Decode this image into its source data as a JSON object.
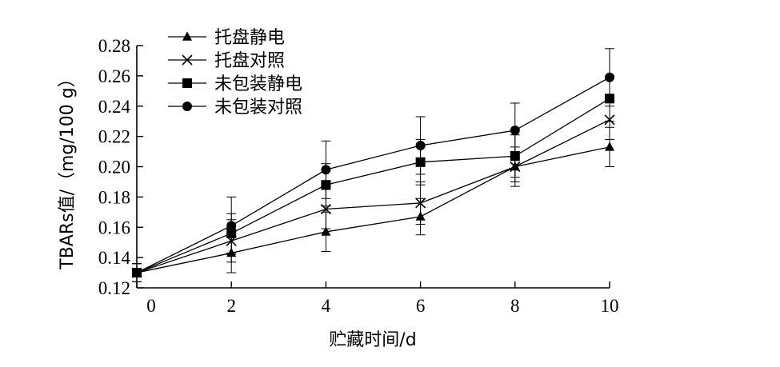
{
  "chart_data": {
    "type": "line",
    "xlabel": "贮藏时间/d",
    "ylabel": "TBARs值/（mg/100 g）",
    "xlim": [
      0,
      10
    ],
    "ylim": [
      0.12,
      0.28
    ],
    "xticks": [
      "0",
      "2",
      "4",
      "6",
      "8",
      "10"
    ],
    "yticks": [
      "0.12",
      "0.14",
      "0.16",
      "0.18",
      "0.20",
      "0.22",
      "0.24",
      "0.26",
      "0.28"
    ],
    "legend_position": "top-left",
    "grid": false,
    "x": [
      0,
      2,
      4,
      6,
      8,
      10
    ],
    "series": [
      {
        "name": "托盘静电",
        "marker": "triangle",
        "values": [
          0.13,
          0.143,
          0.157,
          0.167,
          0.2,
          0.213
        ],
        "errors": [
          0.006,
          0.013,
          0.013,
          0.012,
          0.01,
          0.013
        ]
      },
      {
        "name": "托盘对照",
        "marker": "x",
        "values": [
          0.13,
          0.151,
          0.172,
          0.176,
          0.2,
          0.231
        ],
        "errors": [
          0.006,
          0.014,
          0.013,
          0.014,
          0.013,
          0.013
        ]
      },
      {
        "name": "未包装静电",
        "marker": "square",
        "values": [
          0.13,
          0.156,
          0.188,
          0.203,
          0.207,
          0.245
        ],
        "errors": [
          0.006,
          0.013,
          0.014,
          0.015,
          0.014,
          0.015
        ]
      },
      {
        "name": "未包装对照",
        "marker": "circle",
        "values": [
          0.13,
          0.161,
          0.198,
          0.214,
          0.224,
          0.259
        ],
        "errors": [
          0.006,
          0.019,
          0.019,
          0.019,
          0.018,
          0.019
        ]
      }
    ]
  }
}
